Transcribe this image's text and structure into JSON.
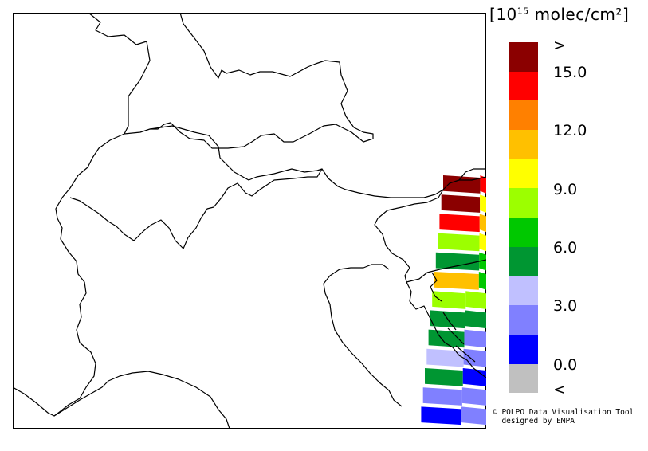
{
  "legend": {
    "unit_prefix": "10",
    "unit_exp": "15",
    "unit_suffix": "molec/cm²",
    "bracket_open": "[",
    "bracket_close": "]",
    "colors": [
      "#8b0000",
      "#ff0000",
      "#ff8000",
      "#ffc000",
      "#ffff00",
      "#9cff00",
      "#00c800",
      "#009632",
      "#c0c0ff",
      "#8080ff",
      "#0000ff",
      "#c0c0c0"
    ],
    "top_label": ">",
    "bottom_label": "<",
    "ticks": [
      "15.0",
      "12.0",
      "9.0",
      "6.0",
      "3.0",
      "0.0"
    ]
  },
  "credit": {
    "line1": "© POLPO Data Visualisation Tool",
    "line2": "  designed by EMPA"
  },
  "map": {
    "region": "Alps / Northern Italy",
    "swath_colors": [
      [
        "#8b0000",
        "#ff0000"
      ],
      [
        "#8b0000",
        "#ffff00"
      ],
      [
        "#ff0000",
        "#ffc000"
      ],
      [
        "#9cff00",
        "#ffff00"
      ],
      [
        "#009632",
        "#00c800"
      ],
      [
        "#ffc000",
        "#00c800"
      ],
      [
        "#9cff00",
        "#9cff00"
      ],
      [
        "#009632",
        "#009632"
      ],
      [
        "#009632",
        "#8080ff"
      ],
      [
        "#c0c0ff",
        "#8080ff"
      ],
      [
        "#009632",
        "#0000ff"
      ],
      [
        "#8080ff",
        "#8080ff"
      ],
      [
        "#0000ff",
        "#8080ff"
      ]
    ]
  }
}
